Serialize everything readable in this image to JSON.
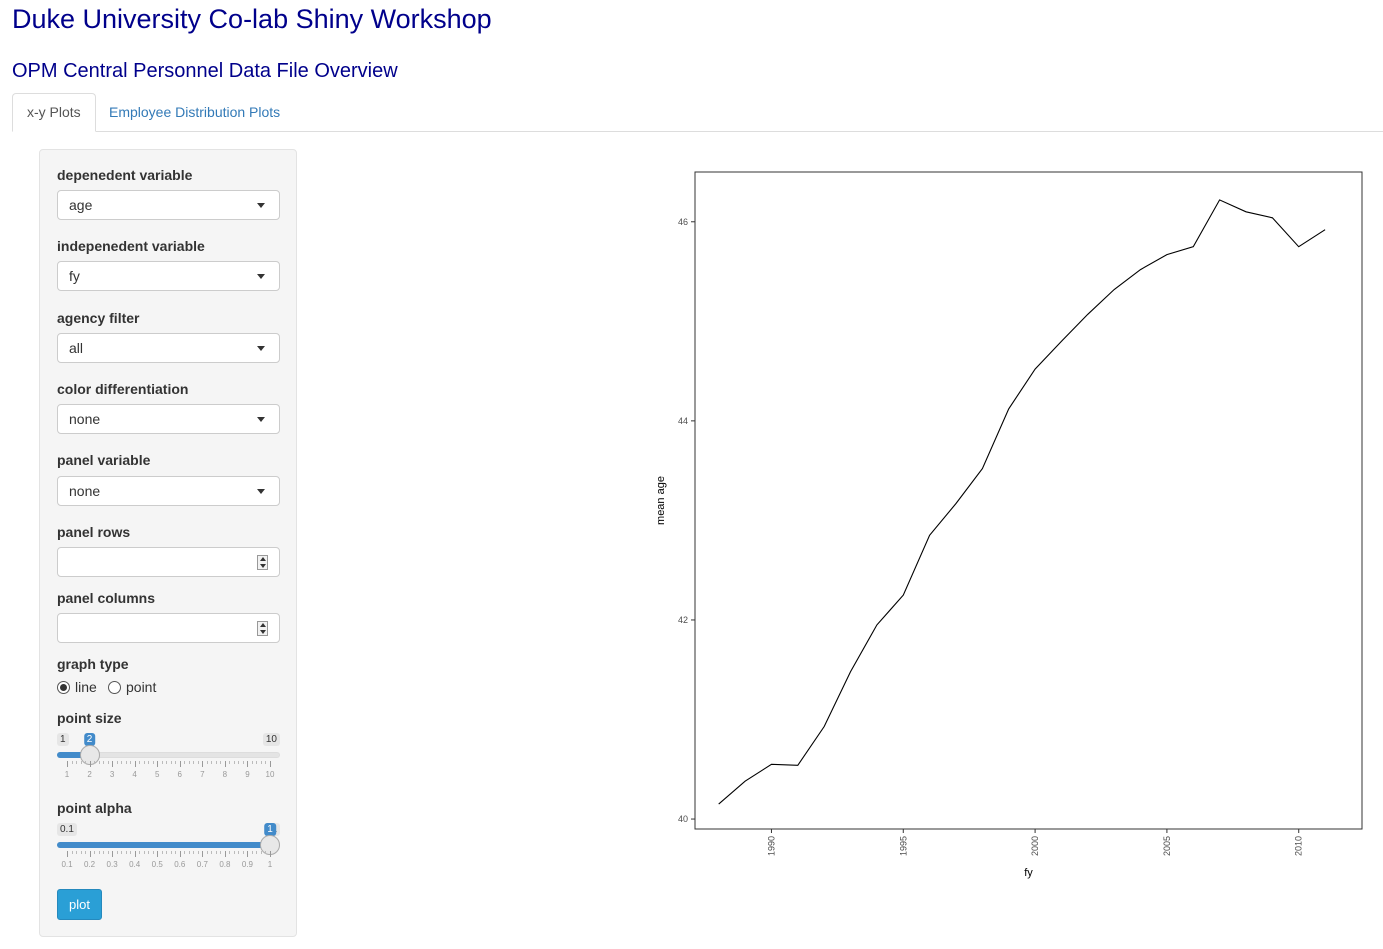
{
  "header": {
    "title": "Duke University Co-lab Shiny Workshop",
    "subtitle": "OPM Central Personnel Data File Overview"
  },
  "tabs": [
    {
      "label": "x-y Plots",
      "active": true
    },
    {
      "label": "Employee Distribution Plots",
      "active": false
    }
  ],
  "sidebar": {
    "dependent": {
      "label": "depenedent variable",
      "value": "age"
    },
    "independent": {
      "label": "indepenedent variable",
      "value": "fy"
    },
    "agency": {
      "label": "agency filter",
      "value": "all"
    },
    "color": {
      "label": "color differentiation",
      "value": "none"
    },
    "panel": {
      "label": "panel variable",
      "value": "none"
    },
    "panel_rows": {
      "label": "panel rows",
      "value": ""
    },
    "panel_cols": {
      "label": "panel columns",
      "value": ""
    },
    "graph_type": {
      "label": "graph type",
      "options": [
        {
          "label": "line",
          "selected": true
        },
        {
          "label": "point",
          "selected": false
        }
      ]
    },
    "point_size": {
      "label": "point size",
      "min": 1,
      "max": 10,
      "value": 2,
      "min_label": "1",
      "max_label": "10",
      "value_label": "2",
      "tick_labels": [
        "1",
        "2",
        "3",
        "4",
        "5",
        "6",
        "7",
        "8",
        "9",
        "10"
      ]
    },
    "point_alpha": {
      "label": "point alpha",
      "min": 0.1,
      "max": 1,
      "value": 1,
      "min_label": "0.1",
      "max_label": "1",
      "value_label": "1",
      "tick_labels": [
        "0.1",
        "0.2",
        "0.3",
        "0.4",
        "0.5",
        "0.6",
        "0.7",
        "0.8",
        "0.9",
        "1"
      ]
    },
    "plot_button": "plot"
  },
  "chart_data": {
    "type": "line",
    "title": "",
    "xlabel": "fy",
    "ylabel": "mean age",
    "xlim": [
      1987.1,
      2012.4
    ],
    "ylim": [
      39.9,
      46.5
    ],
    "xticks": [
      1990,
      1995,
      2000,
      2005,
      2010
    ],
    "yticks": [
      40,
      42,
      44,
      46
    ],
    "grid": false,
    "x": [
      1988,
      1989,
      1990,
      1991,
      1992,
      1993,
      1994,
      1995,
      1996,
      1997,
      1998,
      1999,
      2000,
      2001,
      2002,
      2003,
      2004,
      2005,
      2006,
      2007,
      2008,
      2009,
      2010,
      2011
    ],
    "y": [
      40.15,
      40.38,
      40.55,
      40.54,
      40.93,
      41.48,
      41.95,
      42.25,
      42.85,
      43.17,
      43.52,
      44.12,
      44.52,
      44.8,
      45.07,
      45.32,
      45.52,
      45.67,
      45.75,
      46.22,
      46.1,
      46.04,
      45.75,
      45.92
    ],
    "line_color": "#000000"
  }
}
